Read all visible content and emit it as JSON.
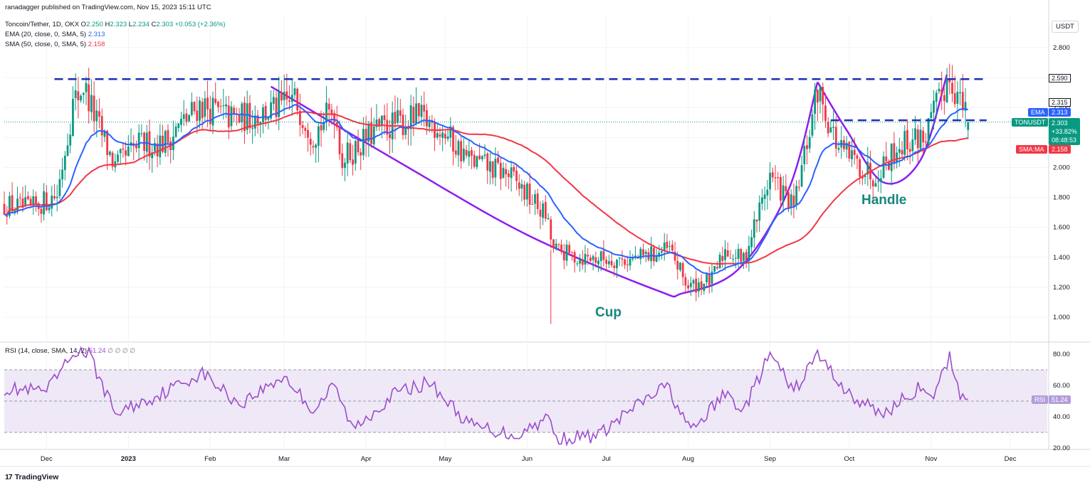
{
  "header": {
    "publisher": "ranadagger published on TradingView.com, Nov 15, 2023 15:11 UTC",
    "symbol_line": "Toncoin/Tether, 1D, OKX",
    "open_label": "O",
    "open": "2.250",
    "high_label": "H",
    "high": "2.323",
    "low_label": "L",
    "low": "2.234",
    "close_label": "C",
    "close": "2.303",
    "change": "+0.053 (+2.36%)",
    "ema_line": "EMA (20, close, 0, SMA, 5)",
    "ema_value": "2.313",
    "sma_line": "SMA (50, close, 0, SMA, 5)",
    "sma_value": "2.158",
    "rsi_line": "RSI (14, close, SMA, 14, 2)",
    "rsi_value": "51.24",
    "rsi_extra": "∅ ∅ ∅ ∅"
  },
  "currency": "USDT",
  "brand": "TradingView",
  "price_labels": {
    "resistance_1": "2.590",
    "resistance_2": "2.315",
    "ema_tag": "EMA",
    "ema": "2.313",
    "symbol_tag": "TONUSDT",
    "last": "2.303",
    "pct": "+33.82%",
    "countdown": "08:48:53",
    "sma_tag": "SMA:MA",
    "sma": "2.158",
    "rsi_tag": "RSI",
    "rsi": "51.24"
  },
  "annotations": {
    "cup": "Cup",
    "handle": "Handle"
  },
  "colors": {
    "up": "#089981",
    "down": "#f23645",
    "ema": "#2962ff",
    "sma": "#f23645",
    "pattern": "#8e1cf0",
    "level": "#1e2fb5",
    "rsi": "#9c4dcc",
    "rsi_band": "#ede7f6"
  },
  "chart_data": [
    {
      "type": "candlestick",
      "title": "Toncoin/Tether, 1D, OKX",
      "ylabel": "USDT",
      "ylim": [
        0.9,
        2.95
      ],
      "x_range": [
        "2022-11-15",
        "2023-12-15"
      ],
      "x_ticks": [
        "Dec",
        "2023",
        "Feb",
        "Mar",
        "Apr",
        "May",
        "Jun",
        "Jul",
        "Aug",
        "Sep",
        "Oct",
        "Nov",
        "Dec"
      ],
      "y_ticks": [
        "2.800",
        "2.600",
        "2.400",
        "2.200",
        "2.000",
        "1.800",
        "1.600",
        "1.400",
        "1.200",
        "1.000"
      ],
      "grid": true,
      "close_anchors": [
        {
          "date": "2022-11-15",
          "close": 1.75
        },
        {
          "date": "2022-11-25",
          "close": 1.72
        },
        {
          "date": "2022-12-05",
          "close": 1.82
        },
        {
          "date": "2022-12-11",
          "close": 2.42
        },
        {
          "date": "2022-12-15",
          "close": 2.55
        },
        {
          "date": "2022-12-20",
          "close": 2.3
        },
        {
          "date": "2022-12-27",
          "close": 2.0
        },
        {
          "date": "2023-01-05",
          "close": 2.15
        },
        {
          "date": "2023-01-15",
          "close": 2.17
        },
        {
          "date": "2023-01-28",
          "close": 2.42
        },
        {
          "date": "2023-02-10",
          "close": 2.32
        },
        {
          "date": "2023-02-25",
          "close": 2.38
        },
        {
          "date": "2023-03-05",
          "close": 2.45
        },
        {
          "date": "2023-03-12",
          "close": 2.22
        },
        {
          "date": "2023-03-20",
          "close": 2.4
        },
        {
          "date": "2023-03-23",
          "close": 2.05
        },
        {
          "date": "2023-04-05",
          "close": 2.25
        },
        {
          "date": "2023-04-20",
          "close": 2.33
        },
        {
          "date": "2023-04-28",
          "close": 2.28
        },
        {
          "date": "2023-05-10",
          "close": 2.05
        },
        {
          "date": "2023-05-25",
          "close": 1.95
        },
        {
          "date": "2023-06-08",
          "close": 1.68
        },
        {
          "date": "2023-06-11",
          "close": 1.45
        },
        {
          "date": "2023-06-20",
          "close": 1.4
        },
        {
          "date": "2023-07-10",
          "close": 1.38
        },
        {
          "date": "2023-07-25",
          "close": 1.45
        },
        {
          "date": "2023-08-01",
          "close": 1.2
        },
        {
          "date": "2023-08-10",
          "close": 1.25
        },
        {
          "date": "2023-08-15",
          "close": 1.45
        },
        {
          "date": "2023-08-22",
          "close": 1.38
        },
        {
          "date": "2023-09-01",
          "close": 1.95
        },
        {
          "date": "2023-09-10",
          "close": 1.72
        },
        {
          "date": "2023-09-19",
          "close": 2.52
        },
        {
          "date": "2023-09-27",
          "close": 2.12
        },
        {
          "date": "2023-10-10",
          "close": 1.95
        },
        {
          "date": "2023-10-20",
          "close": 2.15
        },
        {
          "date": "2023-10-30",
          "close": 2.22
        },
        {
          "date": "2023-11-08",
          "close": 2.62
        },
        {
          "date": "2023-11-15",
          "close": 2.303
        }
      ],
      "series": [
        {
          "name": "EMA (20, close, 0, SMA, 5)",
          "last": 2.313
        },
        {
          "name": "SMA (50, close, 0, SMA, 5)",
          "last": 2.158
        }
      ],
      "horizontal_levels": [
        {
          "value": 2.59,
          "from": "2022-12-04",
          "to": "2023-11-22",
          "style": "dashed"
        },
        {
          "value": 2.315,
          "from": "2023-09-24",
          "to": "2023-11-22",
          "style": "dashed"
        }
      ],
      "pattern_lines": [
        {
          "name": "Cup",
          "points": [
            {
              "date": "2023-02-24",
              "value": 2.54
            },
            {
              "date": "2023-04-15",
              "value": 2.02
            },
            {
              "date": "2023-06-01",
              "value": 1.55
            },
            {
              "date": "2023-07-20",
              "value": 1.18
            },
            {
              "date": "2023-07-30",
              "value": 1.16
            },
            {
              "date": "2023-08-20",
              "value": 1.32
            },
            {
              "date": "2023-09-08",
              "value": 1.85
            },
            {
              "date": "2023-09-19",
              "value": 2.57
            }
          ]
        },
        {
          "name": "Handle",
          "points": [
            {
              "date": "2023-09-19",
              "value": 2.57
            },
            {
              "date": "2023-09-30",
              "value": 2.25
            },
            {
              "date": "2023-10-14",
              "value": 1.9
            },
            {
              "date": "2023-10-28",
              "value": 2.05
            },
            {
              "date": "2023-11-07",
              "value": 2.62
            }
          ]
        }
      ],
      "annotations": [
        {
          "text": "Cup",
          "date": "2023-07-08",
          "value": 1.04
        },
        {
          "text": "Handle",
          "date": "2023-10-24",
          "value": 1.76
        }
      ]
    },
    {
      "type": "line",
      "title": "RSI (14, close, SMA, 14, 2)",
      "ylim": [
        18,
        88
      ],
      "y_ticks": [
        "80.00",
        "60.00",
        "40.00",
        "20.00"
      ],
      "band": [
        30,
        70
      ],
      "midline": 50,
      "last": 51.24,
      "anchors": [
        {
          "date": "2022-11-15",
          "value": 58
        },
        {
          "date": "2022-12-01",
          "value": 56
        },
        {
          "date": "2022-12-12",
          "value": 82
        },
        {
          "date": "2022-12-17",
          "value": 80
        },
        {
          "date": "2022-12-27",
          "value": 42
        },
        {
          "date": "2023-01-10",
          "value": 52
        },
        {
          "date": "2023-01-29",
          "value": 68
        },
        {
          "date": "2023-02-12",
          "value": 48
        },
        {
          "date": "2023-03-01",
          "value": 66
        },
        {
          "date": "2023-03-12",
          "value": 44
        },
        {
          "date": "2023-03-20",
          "value": 60
        },
        {
          "date": "2023-03-27",
          "value": 32
        },
        {
          "date": "2023-04-12",
          "value": 55
        },
        {
          "date": "2023-04-25",
          "value": 62
        },
        {
          "date": "2023-05-10",
          "value": 35
        },
        {
          "date": "2023-05-28",
          "value": 28
        },
        {
          "date": "2023-06-09",
          "value": 40
        },
        {
          "date": "2023-06-12",
          "value": 26
        },
        {
          "date": "2023-06-28",
          "value": 28
        },
        {
          "date": "2023-07-10",
          "value": 44
        },
        {
          "date": "2023-07-24",
          "value": 60
        },
        {
          "date": "2023-08-02",
          "value": 30
        },
        {
          "date": "2023-08-15",
          "value": 55
        },
        {
          "date": "2023-08-22",
          "value": 44
        },
        {
          "date": "2023-09-01",
          "value": 80
        },
        {
          "date": "2023-09-10",
          "value": 56
        },
        {
          "date": "2023-09-19",
          "value": 80
        },
        {
          "date": "2023-10-02",
          "value": 52
        },
        {
          "date": "2023-10-14",
          "value": 42
        },
        {
          "date": "2023-10-27",
          "value": 58
        },
        {
          "date": "2023-11-01",
          "value": 50
        },
        {
          "date": "2023-11-08",
          "value": 78
        },
        {
          "date": "2023-11-12",
          "value": 55
        },
        {
          "date": "2023-11-15",
          "value": 51.24
        }
      ]
    }
  ]
}
